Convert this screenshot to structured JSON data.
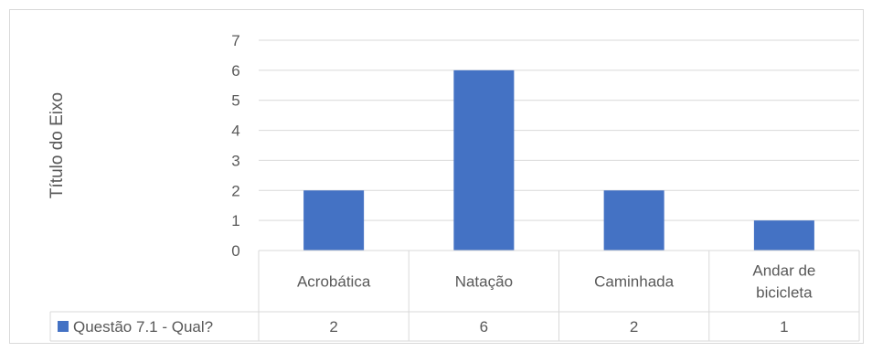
{
  "chart_data": {
    "type": "bar",
    "title": "",
    "xlabel": "",
    "ylabel": "Título do Eixo",
    "ylim": [
      0,
      7
    ],
    "yticks": [
      0,
      1,
      2,
      3,
      4,
      5,
      6,
      7
    ],
    "grid": true,
    "categories": [
      [
        "Acrobática"
      ],
      [
        "Natação"
      ],
      [
        "Caminhada"
      ],
      [
        "Andar de",
        "bicicleta"
      ]
    ],
    "series": [
      {
        "name": "Questão 7.1 - Qual?",
        "values": [
          2,
          6,
          2,
          1
        ],
        "color": "#4472C4"
      }
    ],
    "data_table": true
  }
}
